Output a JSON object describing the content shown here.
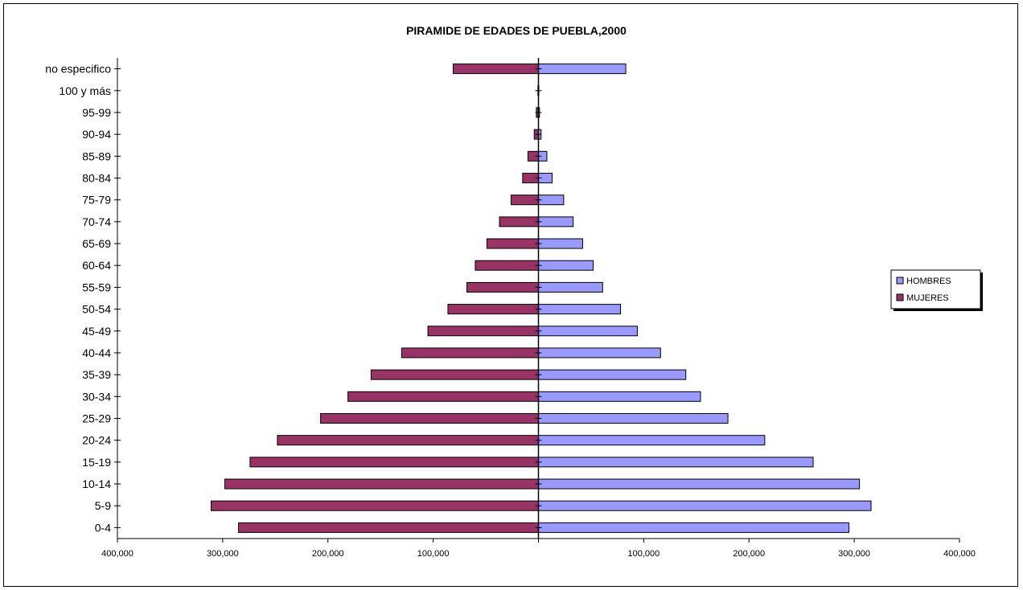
{
  "chart_data": {
    "type": "bar",
    "orientation": "horizontal",
    "title": "PIRAMIDE DE EDADES DE PUEBLA,2000",
    "categories": [
      "0-4",
      "5-9",
      "10-14",
      "15-19",
      "20-24",
      "25-29",
      "30-34",
      "35-39",
      "40-44",
      "45-49",
      "50-54",
      "55-59",
      "60-64",
      "65-69",
      "70-74",
      "75-79",
      "80-84",
      "85-89",
      "90-94",
      "95-99",
      "100 y más",
      "no especifico"
    ],
    "series": [
      {
        "name": "HOMBRES",
        "color": "#9999ff",
        "values": [
          295000,
          316000,
          305000,
          261000,
          215000,
          180000,
          154000,
          140000,
          116000,
          94000,
          78000,
          61000,
          52000,
          42000,
          33000,
          24000,
          13000,
          8000,
          2500,
          1000,
          300,
          83000
        ]
      },
      {
        "name": "MUJERES",
        "color": "#993366",
        "values": [
          285000,
          311000,
          298000,
          274000,
          248000,
          207000,
          181000,
          159000,
          130000,
          105000,
          86000,
          68000,
          60000,
          49000,
          37000,
          26000,
          15000,
          10000,
          4000,
          2000,
          500,
          81000
        ]
      }
    ],
    "xlim": [
      -400000,
      400000
    ],
    "x_ticks": [
      -400000,
      -300000,
      -200000,
      -100000,
      100000,
      200000,
      300000,
      400000
    ],
    "x_tick_labels": [
      "400,000",
      "300,000",
      "200,000",
      "100,000",
      "100,000",
      "200,000",
      "300,000",
      "400,000"
    ],
    "legend": {
      "position": "right",
      "entries": [
        "HOMBRES",
        "MUJERES"
      ]
    },
    "grid": false
  }
}
